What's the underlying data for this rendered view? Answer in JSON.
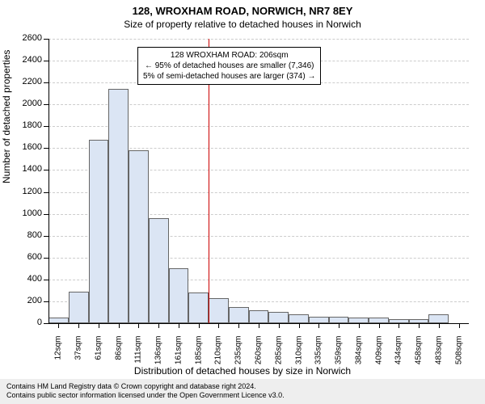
{
  "title_main": "128, WROXHAM ROAD, NORWICH, NR7 8EY",
  "title_sub": "Size of property relative to detached houses in Norwich",
  "y_axis_label": "Number of detached properties",
  "x_axis_label": "Distribution of detached houses by size in Norwich",
  "chart": {
    "type": "histogram",
    "ylim": [
      0,
      2600
    ],
    "ytick_step": 200,
    "bar_fill": "#dbe5f4",
    "bar_border": "#666666",
    "grid_color": "#cccccc",
    "background_color": "#ffffff",
    "reference_line_color": "#cc0000",
    "reference_line_x_index": 8,
    "label_fontsize": 12,
    "tick_fontsize": 11,
    "x_categories": [
      "12sqm",
      "37sqm",
      "61sqm",
      "86sqm",
      "111sqm",
      "136sqm",
      "161sqm",
      "185sqm",
      "210sqm",
      "235sqm",
      "260sqm",
      "285sqm",
      "310sqm",
      "335sqm",
      "359sqm",
      "384sqm",
      "409sqm",
      "434sqm",
      "458sqm",
      "483sqm",
      "508sqm"
    ],
    "values": [
      50,
      290,
      1680,
      2140,
      1580,
      960,
      500,
      280,
      230,
      150,
      120,
      100,
      80,
      60,
      60,
      50,
      50,
      40,
      40,
      80,
      0
    ]
  },
  "annotation": {
    "line1": "128 WROXHAM ROAD: 206sqm",
    "line2": "← 95% of detached houses are smaller (7,346)",
    "line3": "5% of semi-detached houses are larger (374) →"
  },
  "footer": {
    "line1": "Contains HM Land Registry data © Crown copyright and database right 2024.",
    "line2": "Contains public sector information licensed under the Open Government Licence v3.0."
  }
}
